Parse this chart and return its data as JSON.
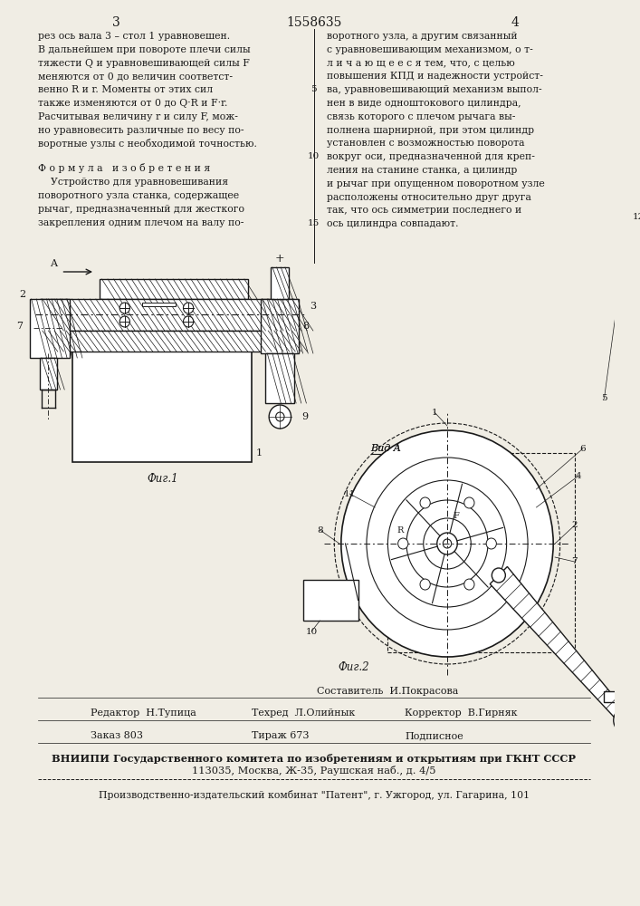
{
  "bg_color": "#f0ede4",
  "page_number_left": "3",
  "page_center_title": "1558635",
  "page_number_right": "4",
  "text_col1": [
    "рез ось вала 3 – стол 1 уравновешен.",
    "В дальнейшем при повороте плечи силы",
    "тяжести Q и уравновешивающей силы F",
    "меняются от 0 до величин соответст-",
    "венно R и r. Моменты от этих сил",
    "также изменяются от 0 до Q·R и F·r.",
    "Расчитывая величину r и силу F, мож-",
    "но уравновесить различные по весу по-",
    "воротные узлы с необходимой точностью."
  ],
  "formula_header": "Ф о р м у л а   и з о б р е т е н и я",
  "formula_text": [
    "    Устройство для уравновешивания",
    "поворотного узла станка, содержащее",
    "рычаг, предназначенный для жесткого",
    "закрепления одним плечом на валу по-"
  ],
  "text_col2": [
    "воротного узла, а другим связанный",
    "с уравновешивающим механизмом, о т-",
    "л и ч а ю щ е е с я тем, что, с целью",
    "повышения КПД и надежности устройст-",
    "ва, уравновешивающий механизм выпол-",
    "нен в виде одноштокового цилиндра,",
    "связь которого с плечом рычага вы-",
    "полнена шарнирной, при этом цилиндр",
    "установлен с возможностью поворота",
    "вокруг оси, предназначенной для креп-",
    "ления на станине станка, а цилиндр",
    "и рычаг при опущенном поворотном узле",
    "расположены относительно друг друга",
    "так, что ось симметрии последнего и",
    "ось цилиндра совпадают."
  ],
  "composer_line": "Составитель  И.Покрасова",
  "editor_label": "Редактор  Н.Тупица",
  "tech_label": "Техред  Л.Олийнык",
  "corrector_label": "Корректор  В.Гирняк",
  "order_label": "Заказ 803",
  "edition_label": "Тираж 673",
  "subscription_label": "Подписное",
  "vniiipi_line1": "ВНИИПИ Государственного комитета по изобретениям и открытиям при ГКНТ СССР",
  "vniiipi_line2": "113035, Москва, Ж-35, Раушская наб., д. 4/5",
  "publisher_line": "Производственно-издательский комбинат \"Патент\", г. Ужгород, ул. Гагарина, 101",
  "fig1_label": "Фиг.1",
  "fig2_label": "Фиг.2",
  "view_label": "Вид A",
  "text_color": "#1a1a1a",
  "line_color": "#1a1a1a"
}
